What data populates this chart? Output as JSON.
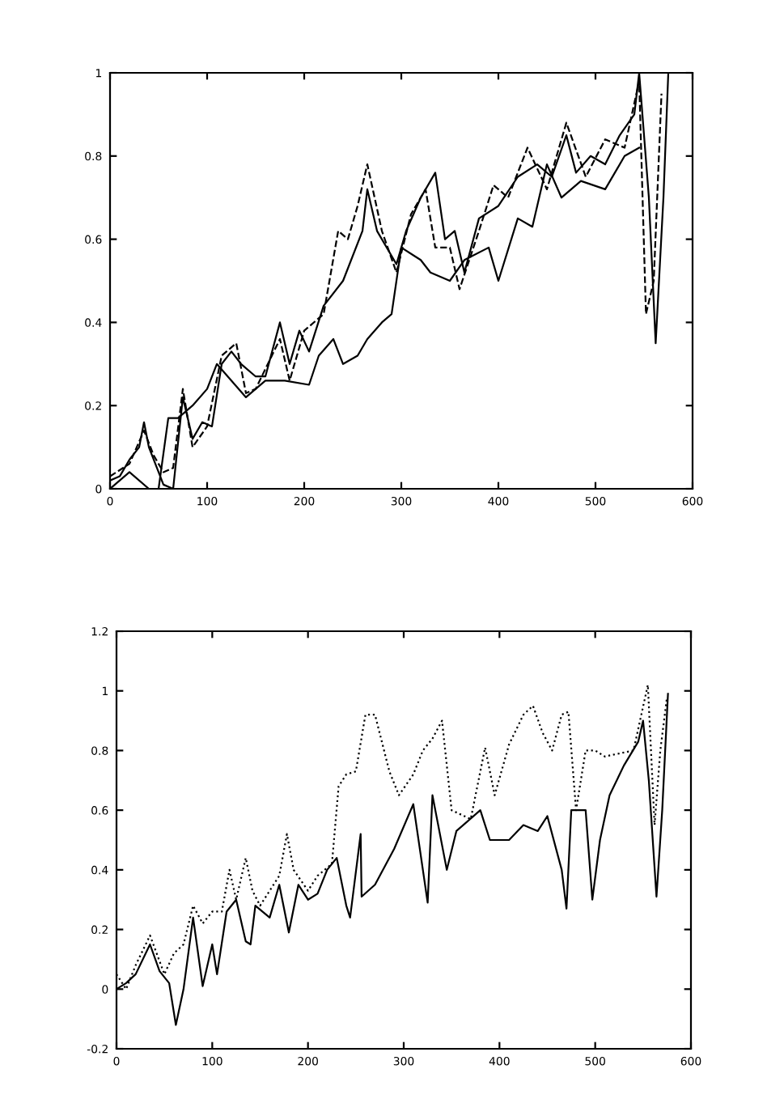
{
  "chart_data": [
    {
      "type": "line",
      "xlim": [
        0,
        600
      ],
      "ylim": [
        0,
        1
      ],
      "xticks": [
        0,
        100,
        200,
        300,
        400,
        500,
        600
      ],
      "yticks": [
        0,
        0.2,
        0.4,
        0.6,
        0.8,
        1
      ],
      "grid": false,
      "legend": false,
      "series": [
        {
          "color": "#000000",
          "line_style": "solid",
          "x": [
            0,
            10,
            20,
            30,
            35,
            40,
            50,
            55,
            65,
            75,
            85,
            95,
            105,
            115,
            125,
            135,
            150,
            160,
            175,
            185,
            195,
            205,
            220,
            240,
            260,
            265,
            275,
            295,
            305,
            320,
            335,
            345,
            355,
            365,
            380,
            400,
            420,
            440,
            455,
            470,
            480,
            495,
            510,
            525,
            540,
            545,
            555,
            562,
            570,
            575
          ],
          "values": [
            0.02,
            0.03,
            0.07,
            0.1,
            0.16,
            0.1,
            0.04,
            0.01,
            0.0,
            0.22,
            0.12,
            0.16,
            0.15,
            0.3,
            0.33,
            0.3,
            0.27,
            0.27,
            0.4,
            0.3,
            0.38,
            0.33,
            0.44,
            0.5,
            0.62,
            0.72,
            0.62,
            0.54,
            0.62,
            0.7,
            0.76,
            0.6,
            0.62,
            0.52,
            0.65,
            0.68,
            0.75,
            0.78,
            0.75,
            0.85,
            0.76,
            0.8,
            0.78,
            0.85,
            0.9,
            1.0,
            0.7,
            0.35,
            0.7,
            1.0
          ]
        },
        {
          "color": "#000000",
          "line_style": "dashed",
          "x": [
            0,
            20,
            35,
            45,
            55,
            65,
            75,
            85,
            100,
            115,
            130,
            140,
            150,
            175,
            185,
            200,
            220,
            235,
            245,
            255,
            265,
            280,
            295,
            310,
            325,
            335,
            350,
            360,
            380,
            395,
            410,
            430,
            450,
            470,
            490,
            510,
            530,
            545,
            552,
            560,
            568
          ],
          "values": [
            0.03,
            0.06,
            0.14,
            0.08,
            0.04,
            0.05,
            0.24,
            0.1,
            0.15,
            0.32,
            0.35,
            0.23,
            0.24,
            0.36,
            0.26,
            0.38,
            0.42,
            0.62,
            0.6,
            0.68,
            0.78,
            0.62,
            0.52,
            0.66,
            0.72,
            0.58,
            0.58,
            0.48,
            0.62,
            0.73,
            0.7,
            0.82,
            0.72,
            0.88,
            0.75,
            0.84,
            0.82,
            0.98,
            0.42,
            0.5,
            0.95
          ]
        },
        {
          "color": "#000000",
          "line_style": "solid",
          "x": [
            0,
            20,
            40,
            50,
            60,
            70,
            85,
            100,
            110,
            140,
            160,
            180,
            205,
            215,
            230,
            240,
            255,
            265,
            280,
            290,
            300,
            320,
            330,
            350,
            365,
            390,
            400,
            420,
            435,
            450,
            465,
            485,
            510,
            530,
            545
          ],
          "values": [
            0.0,
            0.04,
            0.0,
            0.0,
            0.17,
            0.17,
            0.2,
            0.24,
            0.3,
            0.22,
            0.26,
            0.26,
            0.25,
            0.32,
            0.36,
            0.3,
            0.32,
            0.36,
            0.4,
            0.42,
            0.58,
            0.55,
            0.52,
            0.5,
            0.55,
            0.58,
            0.5,
            0.65,
            0.63,
            0.78,
            0.7,
            0.74,
            0.72,
            0.8,
            0.82
          ]
        }
      ]
    },
    {
      "type": "line",
      "xlim": [
        0,
        600
      ],
      "ylim": [
        -0.2,
        1.2
      ],
      "xticks": [
        0,
        100,
        200,
        300,
        400,
        500,
        600
      ],
      "yticks": [
        -0.2,
        0,
        0.2,
        0.4,
        0.6,
        0.8,
        1,
        1.2
      ],
      "grid": false,
      "legend": false,
      "series": [
        {
          "color": "#000000",
          "line_style": "solid",
          "x": [
            0,
            10,
            20,
            35,
            45,
            55,
            62,
            70,
            80,
            90,
            100,
            105,
            115,
            125,
            135,
            140,
            145,
            160,
            170,
            180,
            190,
            200,
            210,
            220,
            230,
            240,
            244,
            255,
            256,
            270,
            290,
            310,
            325,
            330,
            345,
            355,
            380,
            390,
            410,
            425,
            440,
            450,
            465,
            470,
            475,
            490,
            497,
            505,
            515,
            530,
            545,
            550,
            556,
            564,
            570,
            576
          ],
          "values": [
            0.0,
            0.02,
            0.05,
            0.15,
            0.06,
            0.02,
            -0.12,
            0.0,
            0.24,
            0.01,
            0.15,
            0.05,
            0.26,
            0.3,
            0.16,
            0.15,
            0.28,
            0.24,
            0.35,
            0.19,
            0.35,
            0.3,
            0.32,
            0.4,
            0.44,
            0.28,
            0.24,
            0.52,
            0.31,
            0.35,
            0.47,
            0.62,
            0.29,
            0.65,
            0.4,
            0.53,
            0.6,
            0.5,
            0.5,
            0.55,
            0.53,
            0.58,
            0.4,
            0.27,
            0.6,
            0.6,
            0.3,
            0.5,
            0.65,
            0.75,
            0.83,
            0.9,
            0.7,
            0.31,
            0.6,
            0.99
          ]
        },
        {
          "color": "#000000",
          "line_style": "dotted",
          "x": [
            0,
            10,
            20,
            35,
            50,
            60,
            70,
            80,
            90,
            100,
            110,
            118,
            125,
            135,
            142,
            150,
            170,
            178,
            185,
            200,
            210,
            225,
            232,
            240,
            250,
            260,
            270,
            285,
            295,
            310,
            320,
            330,
            340,
            350,
            370,
            385,
            395,
            410,
            425,
            435,
            445,
            455,
            465,
            472,
            480,
            490,
            500,
            510,
            525,
            540,
            555,
            562,
            568,
            575
          ],
          "values": [
            0.05,
            0.0,
            0.08,
            0.18,
            0.05,
            0.12,
            0.15,
            0.28,
            0.22,
            0.26,
            0.26,
            0.4,
            0.3,
            0.44,
            0.33,
            0.28,
            0.38,
            0.52,
            0.4,
            0.33,
            0.38,
            0.42,
            0.68,
            0.72,
            0.73,
            0.92,
            0.92,
            0.73,
            0.65,
            0.72,
            0.8,
            0.84,
            0.9,
            0.6,
            0.57,
            0.81,
            0.65,
            0.82,
            0.92,
            0.95,
            0.86,
            0.8,
            0.92,
            0.93,
            0.6,
            0.8,
            0.8,
            0.78,
            0.79,
            0.8,
            1.02,
            0.55,
            0.8,
            0.98
          ]
        }
      ]
    }
  ]
}
